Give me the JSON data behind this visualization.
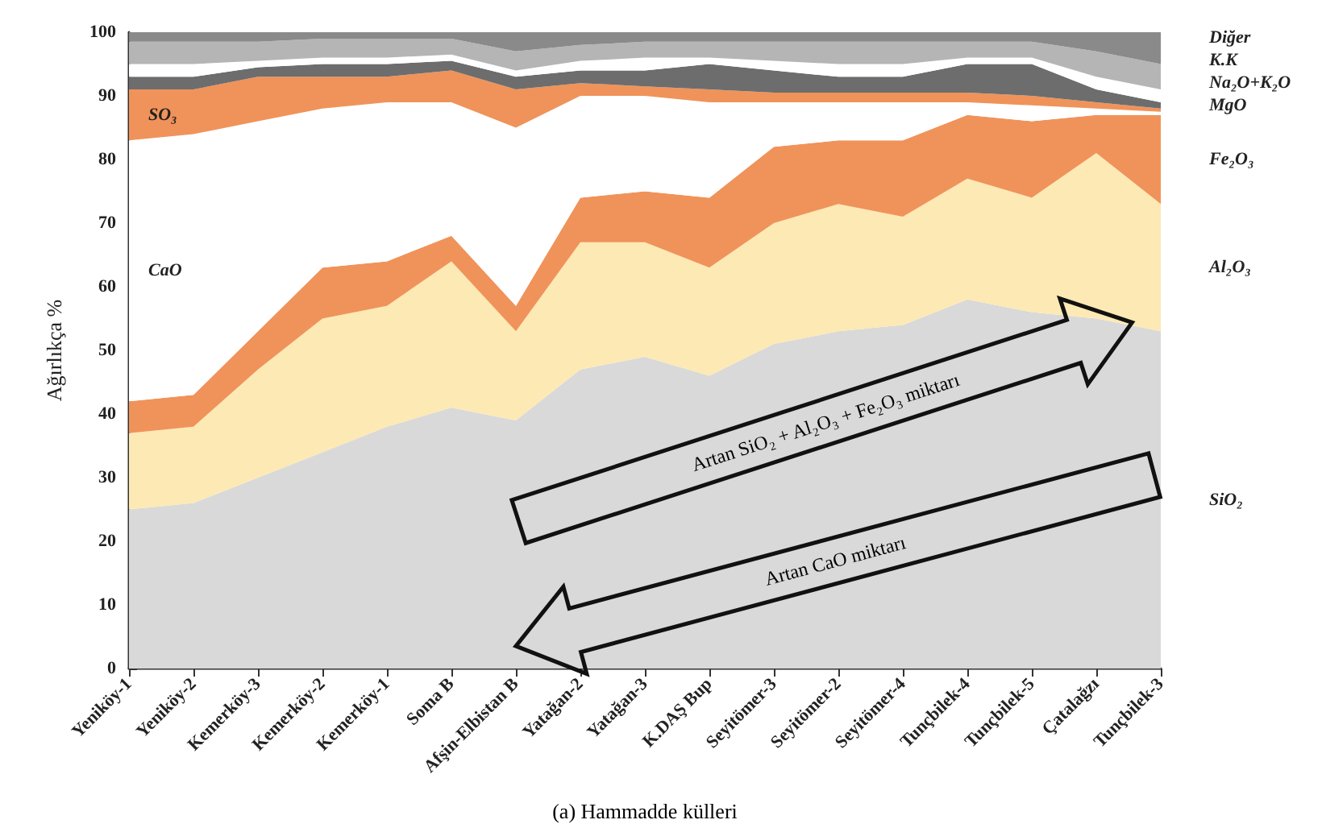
{
  "chart_data": {
    "type": "area",
    "stacked": true,
    "ylabel": "Ağırlıkça %",
    "categories": [
      "Yeniköy-1",
      "Yeniköy-2",
      "Kemerköy-3",
      "Kemerköy-2",
      "Kemerköy-1",
      "Soma B",
      "Afşin-Elbistan B",
      "Yatağan-2",
      "Yatağan-3",
      "K.DAŞ Bup",
      "Seyitömer-3",
      "Seyitömer-2",
      "Seyitömer-4",
      "Tunçbilek-4",
      "Tunçbilek-5",
      "Çatalağzı",
      "Tunçbilek-3"
    ],
    "series": [
      {
        "name": "SiO₂",
        "color": "#d9d9d9",
        "values": [
          25,
          26,
          30,
          34,
          38,
          41,
          39,
          47,
          49,
          46,
          51,
          53,
          54,
          58,
          56,
          55,
          53
        ]
      },
      {
        "name": "Al₂O₃",
        "color": "#fde9b4",
        "values": [
          12,
          12,
          17,
          21,
          19,
          23,
          14,
          20,
          18,
          17,
          19,
          20,
          17,
          19,
          18,
          26,
          20
        ]
      },
      {
        "name": "Fe₂O₃",
        "color": "#f0935a",
        "values": [
          5,
          5,
          6,
          8,
          7,
          4,
          4,
          7,
          8,
          11,
          12,
          10,
          12,
          10,
          12,
          6,
          14
        ]
      },
      {
        "name": "CaO",
        "color": "#ffffff",
        "values": [
          41,
          41,
          33,
          25,
          25,
          21,
          28,
          16,
          15,
          15,
          7,
          6,
          6,
          2,
          2.5,
          1,
          0.5
        ]
      },
      {
        "name": "SO₃",
        "color": "#f0935a",
        "values": [
          8,
          7,
          7,
          5,
          4,
          5,
          6,
          2,
          1.5,
          2,
          1.5,
          1.5,
          1.5,
          1.5,
          1.5,
          1,
          0.5
        ]
      },
      {
        "name": "MgO",
        "color": "#6d6d6d",
        "values": [
          2,
          2,
          1.5,
          2,
          2,
          1.5,
          2,
          2,
          2.5,
          4,
          3.5,
          2.5,
          2.5,
          4.5,
          5,
          2,
          1
        ]
      },
      {
        "name": "Na₂O+K₂O",
        "color": "#ffffff",
        "values": [
          2,
          2,
          1,
          1,
          1,
          1,
          1,
          1.5,
          2,
          1,
          1.5,
          2,
          2,
          1,
          1,
          2,
          2
        ]
      },
      {
        "name": "K.K",
        "color": "#b5b5b5",
        "values": [
          3.5,
          3.5,
          3,
          3,
          3,
          2.5,
          3,
          2.5,
          2.5,
          2.5,
          3,
          3.5,
          3.5,
          2.5,
          2.5,
          4,
          4
        ]
      },
      {
        "name": "Diğer",
        "color": "#8a8a8a",
        "values": [
          1.5,
          1.5,
          1.5,
          1,
          1,
          1,
          3,
          2,
          1.5,
          1.5,
          1.5,
          1.5,
          1.5,
          1.5,
          1.5,
          3,
          5
        ]
      }
    ],
    "ylim": [
      0,
      100
    ],
    "yticks": [
      0,
      10,
      20,
      30,
      40,
      50,
      60,
      70,
      80,
      90,
      100
    ],
    "grid": false,
    "legend": false,
    "annotations": [
      "Artan SiO₂ + Al₂O₃ + Fe₂O₃ miktarı",
      "Artan CaO miktarı",
      "(a) Hammadde külleri"
    ]
  }
}
